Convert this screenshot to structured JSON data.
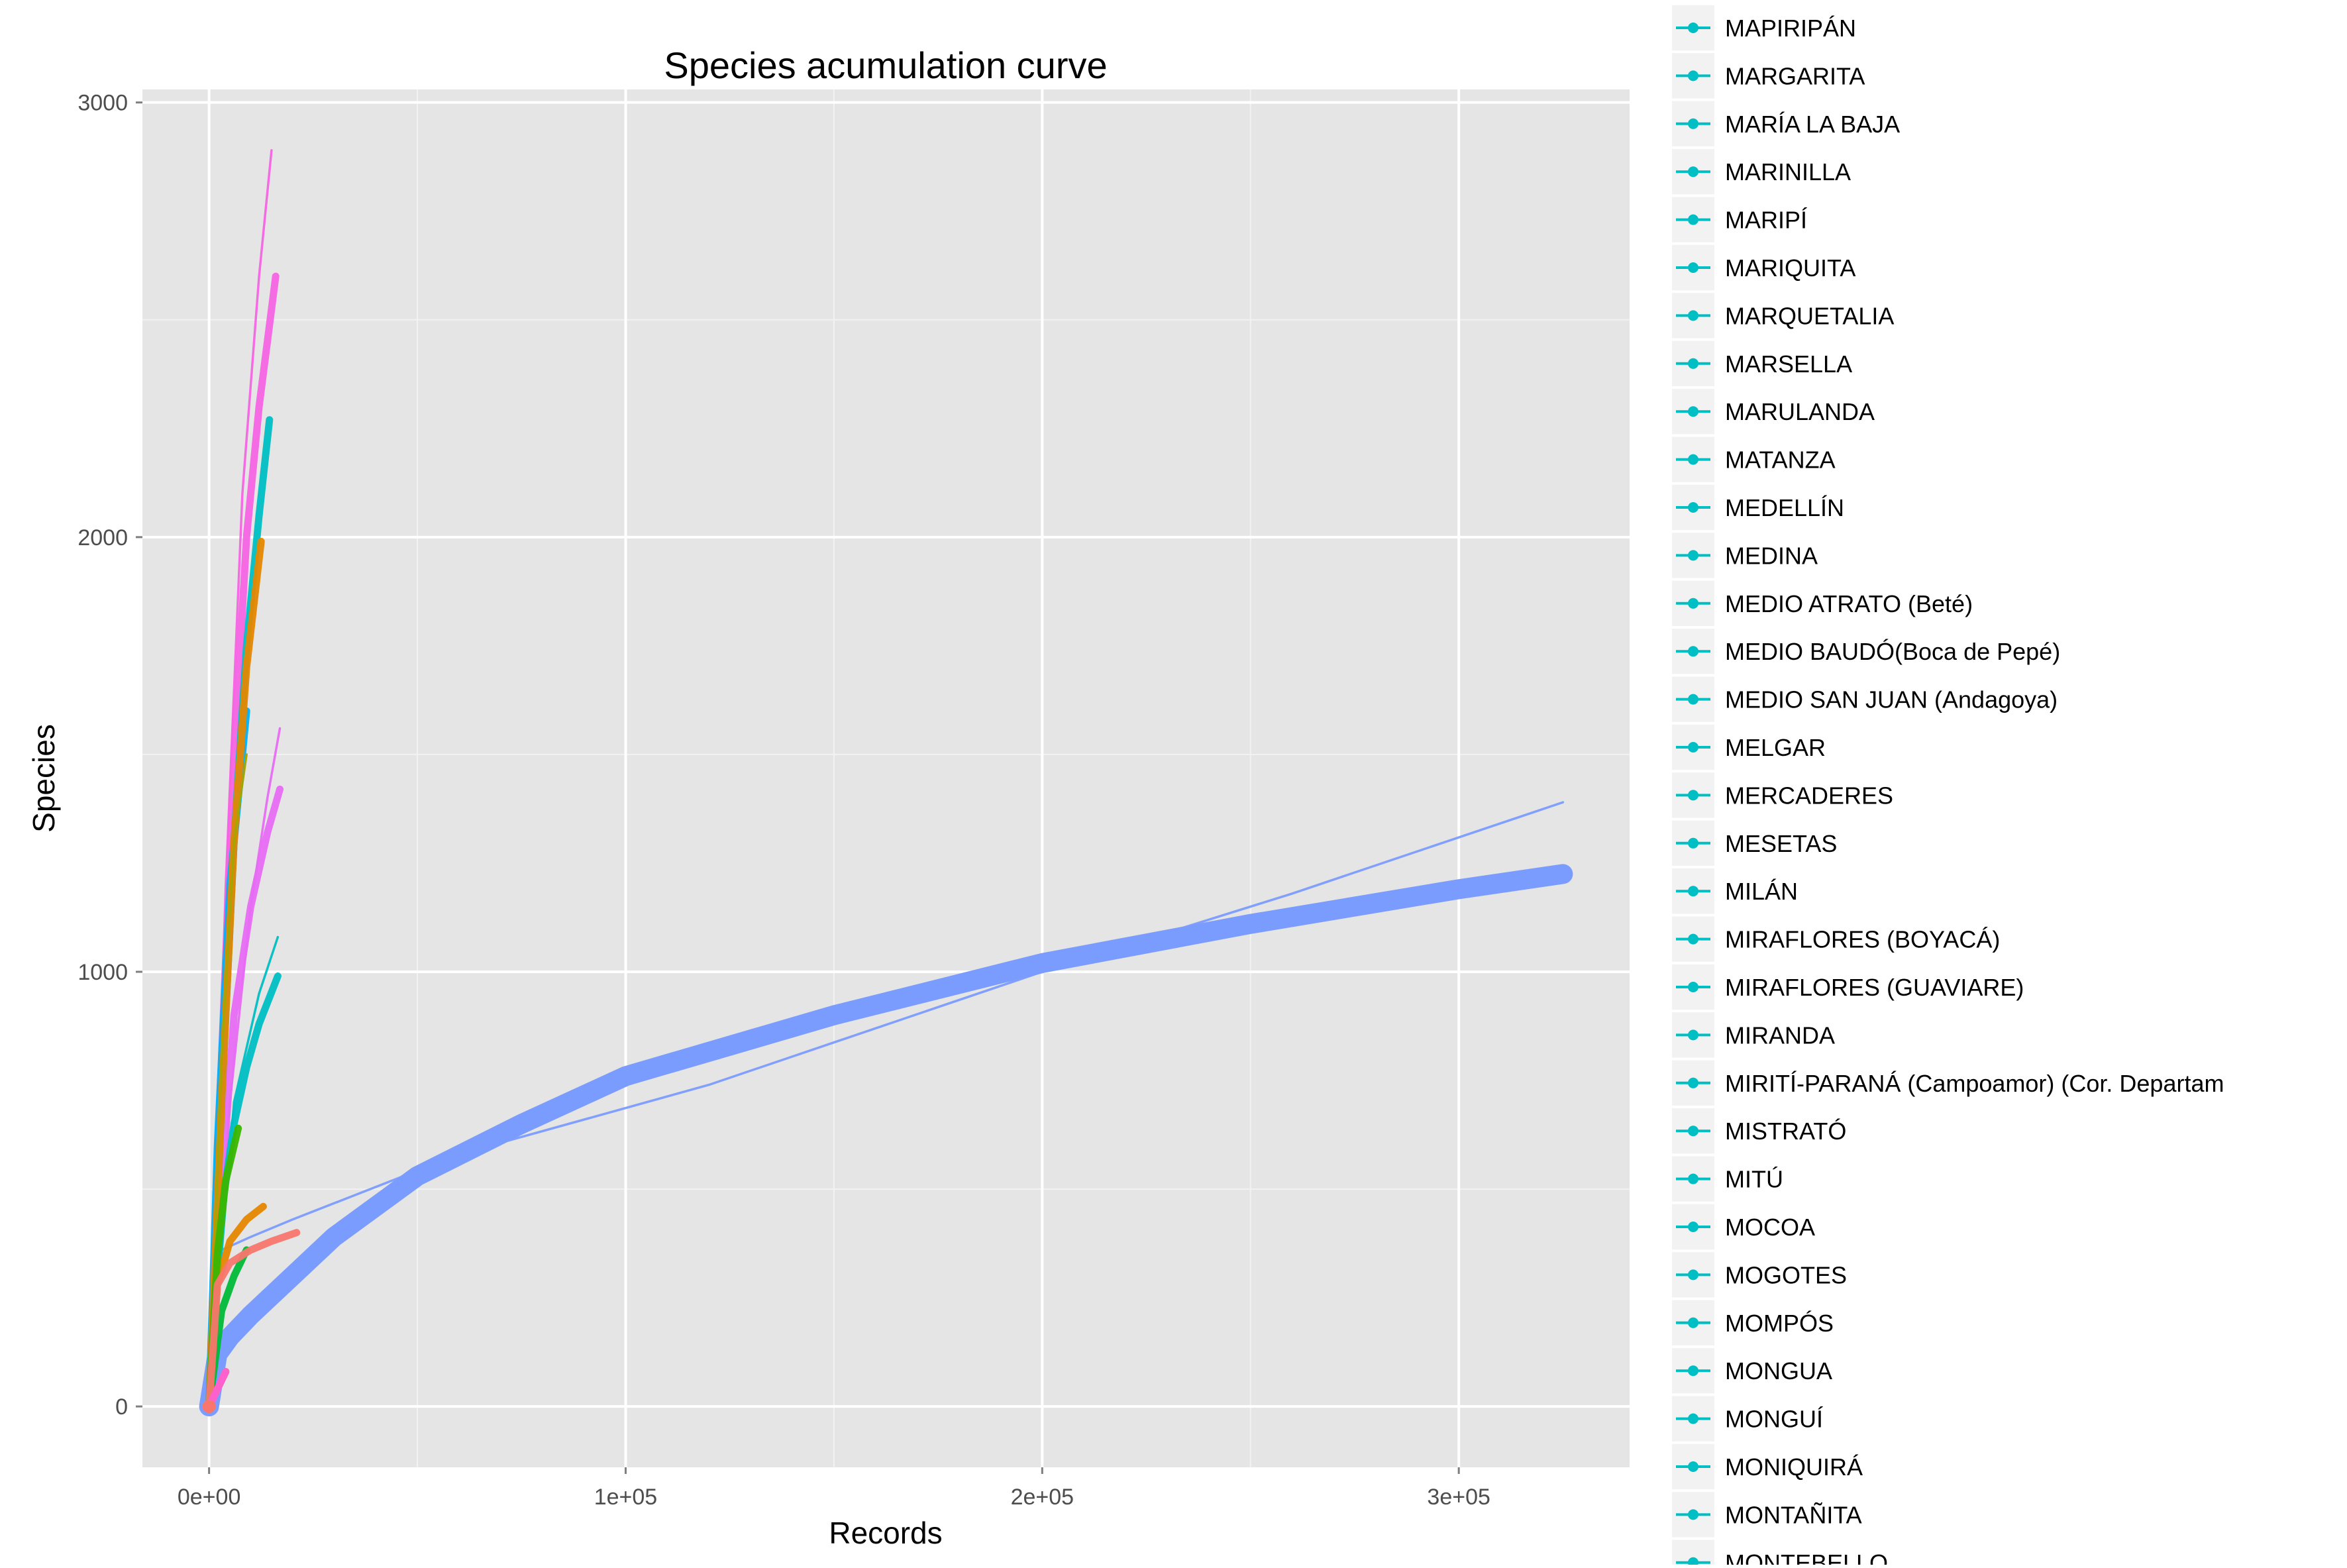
{
  "chart_data": {
    "type": "line",
    "title": "Species acumulation curve",
    "xlabel": "Records",
    "ylabel": "Species",
    "xlim": [
      -16000,
      341000
    ],
    "ylim": [
      -140,
      3030
    ],
    "x_ticks": [
      0,
      100000,
      200000,
      300000
    ],
    "x_tick_labels": [
      "0e+00",
      "1e+05",
      "2e+05",
      "3e+05"
    ],
    "y_ticks": [
      0,
      1000,
      2000,
      3000
    ],
    "y_tick_labels": [
      "0",
      "1000",
      "2000",
      "3000"
    ],
    "grid": true,
    "legend_position": "right",
    "series": [
      {
        "color": "#7b9cff",
        "style": "band",
        "x": [
          0,
          2000,
          5000,
          10000,
          20000,
          30000,
          50000,
          75000,
          100000,
          150000,
          200000,
          250000,
          300000,
          325000
        ],
        "y": [
          0,
          120,
          160,
          210,
          300,
          390,
          530,
          650,
          760,
          900,
          1020,
          1110,
          1190,
          1225
        ]
      },
      {
        "color": "#7b9cff",
        "style": "thin",
        "x": [
          0,
          1000,
          3000,
          10000,
          20000,
          60000,
          120000,
          200000,
          260000,
          325000
        ],
        "y": [
          0,
          250,
          360,
          390,
          430,
          580,
          740,
          1000,
          1180,
          1390
        ]
      },
      {
        "color": "#f564e3",
        "style": "thick",
        "x": [
          0,
          3000,
          6000,
          9000,
          12000,
          16000
        ],
        "y": [
          0,
          800,
          1500,
          2000,
          2300,
          2600
        ]
      },
      {
        "color": "#f564e3",
        "style": "thin",
        "x": [
          0,
          4000,
          8000,
          12000,
          15000
        ],
        "y": [
          0,
          1200,
          2100,
          2600,
          2890
        ]
      },
      {
        "color": "#e76bf3",
        "style": "thick",
        "x": [
          0,
          3000,
          6000,
          10000,
          14000,
          17000
        ],
        "y": [
          0,
          500,
          900,
          1150,
          1320,
          1420
        ]
      },
      {
        "color": "#e76bf3",
        "style": "thin",
        "x": [
          0,
          5000,
          10000,
          14000,
          17000
        ],
        "y": [
          0,
          700,
          1150,
          1400,
          1560
        ]
      },
      {
        "color": "#00bfc4",
        "style": "thick",
        "x": [
          0,
          3000,
          6000,
          9000,
          12000,
          14500
        ],
        "y": [
          0,
          700,
          1300,
          1750,
          2050,
          2270
        ]
      },
      {
        "color": "#00bfc4",
        "style": "thick",
        "x": [
          0,
          3000,
          6000,
          9000,
          12000,
          16500
        ],
        "y": [
          0,
          450,
          650,
          780,
          880,
          990
        ]
      },
      {
        "color": "#00bfc4",
        "style": "thin",
        "x": [
          0,
          6000,
          12000,
          16500
        ],
        "y": [
          0,
          700,
          950,
          1080
        ]
      },
      {
        "color": "#00b0f6",
        "style": "thick",
        "x": [
          0,
          2000,
          5000,
          9000
        ],
        "y": [
          0,
          600,
          1200,
          1600
        ]
      },
      {
        "color": "#e58700",
        "style": "thick",
        "x": [
          0,
          3000,
          6000,
          9000,
          12500
        ],
        "y": [
          0,
          700,
          1300,
          1700,
          1990
        ]
      },
      {
        "color": "#e58700",
        "style": "thick",
        "x": [
          0,
          2000,
          5000,
          9000,
          13000
        ],
        "y": [
          0,
          280,
          380,
          430,
          460
        ]
      },
      {
        "color": "#a3a500",
        "style": "thin",
        "x": [
          0,
          3000,
          6000,
          9000
        ],
        "y": [
          0,
          800,
          1300,
          1500
        ]
      },
      {
        "color": "#00ba38",
        "style": "thick",
        "x": [
          0,
          3000,
          6000,
          9000
        ],
        "y": [
          0,
          220,
          300,
          360
        ]
      },
      {
        "color": "#39b600",
        "style": "thick",
        "x": [
          0,
          2000,
          4000,
          7000
        ],
        "y": [
          0,
          350,
          520,
          640
        ]
      },
      {
        "color": "#f8766d",
        "style": "thick",
        "x": [
          0,
          2000,
          5000,
          10000,
          15000,
          21000
        ],
        "y": [
          0,
          280,
          330,
          360,
          380,
          400
        ]
      },
      {
        "color": "#f8766d",
        "style": "thick",
        "x": [
          0,
          1000,
          2000,
          3000,
          4000
        ],
        "y": [
          0,
          20,
          40,
          60,
          80
        ]
      },
      {
        "color": "#fd61d1",
        "style": "thick",
        "x": [
          0,
          1500,
          3000,
          4000
        ],
        "y": [
          0,
          30,
          60,
          80
        ]
      }
    ],
    "legend": [
      "MAPIRIPÁN",
      "MARGARITA",
      "MARÍA LA BAJA",
      "MARINILLA",
      "MARIPÍ",
      "MARIQUITA",
      "MARQUETALIA",
      "MARSELLA",
      "MARULANDA",
      "MATANZA",
      "MEDELLÍN",
      "MEDINA",
      "MEDIO ATRATO (Beté)",
      "MEDIO BAUDÓ(Boca de Pepé)",
      "MEDIO SAN JUAN (Andagoya)",
      "MELGAR",
      "MERCADERES",
      "MESETAS",
      "MILÁN",
      "MIRAFLORES (BOYACÁ)",
      "MIRAFLORES (GUAVIARE)",
      "MIRANDA",
      "MIRITÍ-PARANÁ (Campoamor) (Cor. Departam",
      "MISTRATÓ",
      "MITÚ",
      "MOCOA",
      "MOGOTES",
      "MOMPÓS",
      "MONGUA",
      "MONGUÍ",
      "MONIQUIRÁ",
      "MONTAÑITA",
      "MONTEBELLO"
    ]
  },
  "colors": {
    "panel_background": "#e5e5e5",
    "grid_major": "#ffffff",
    "legend_key_background": "#f2f2f2",
    "legend_key_color": "#00bfc4"
  }
}
